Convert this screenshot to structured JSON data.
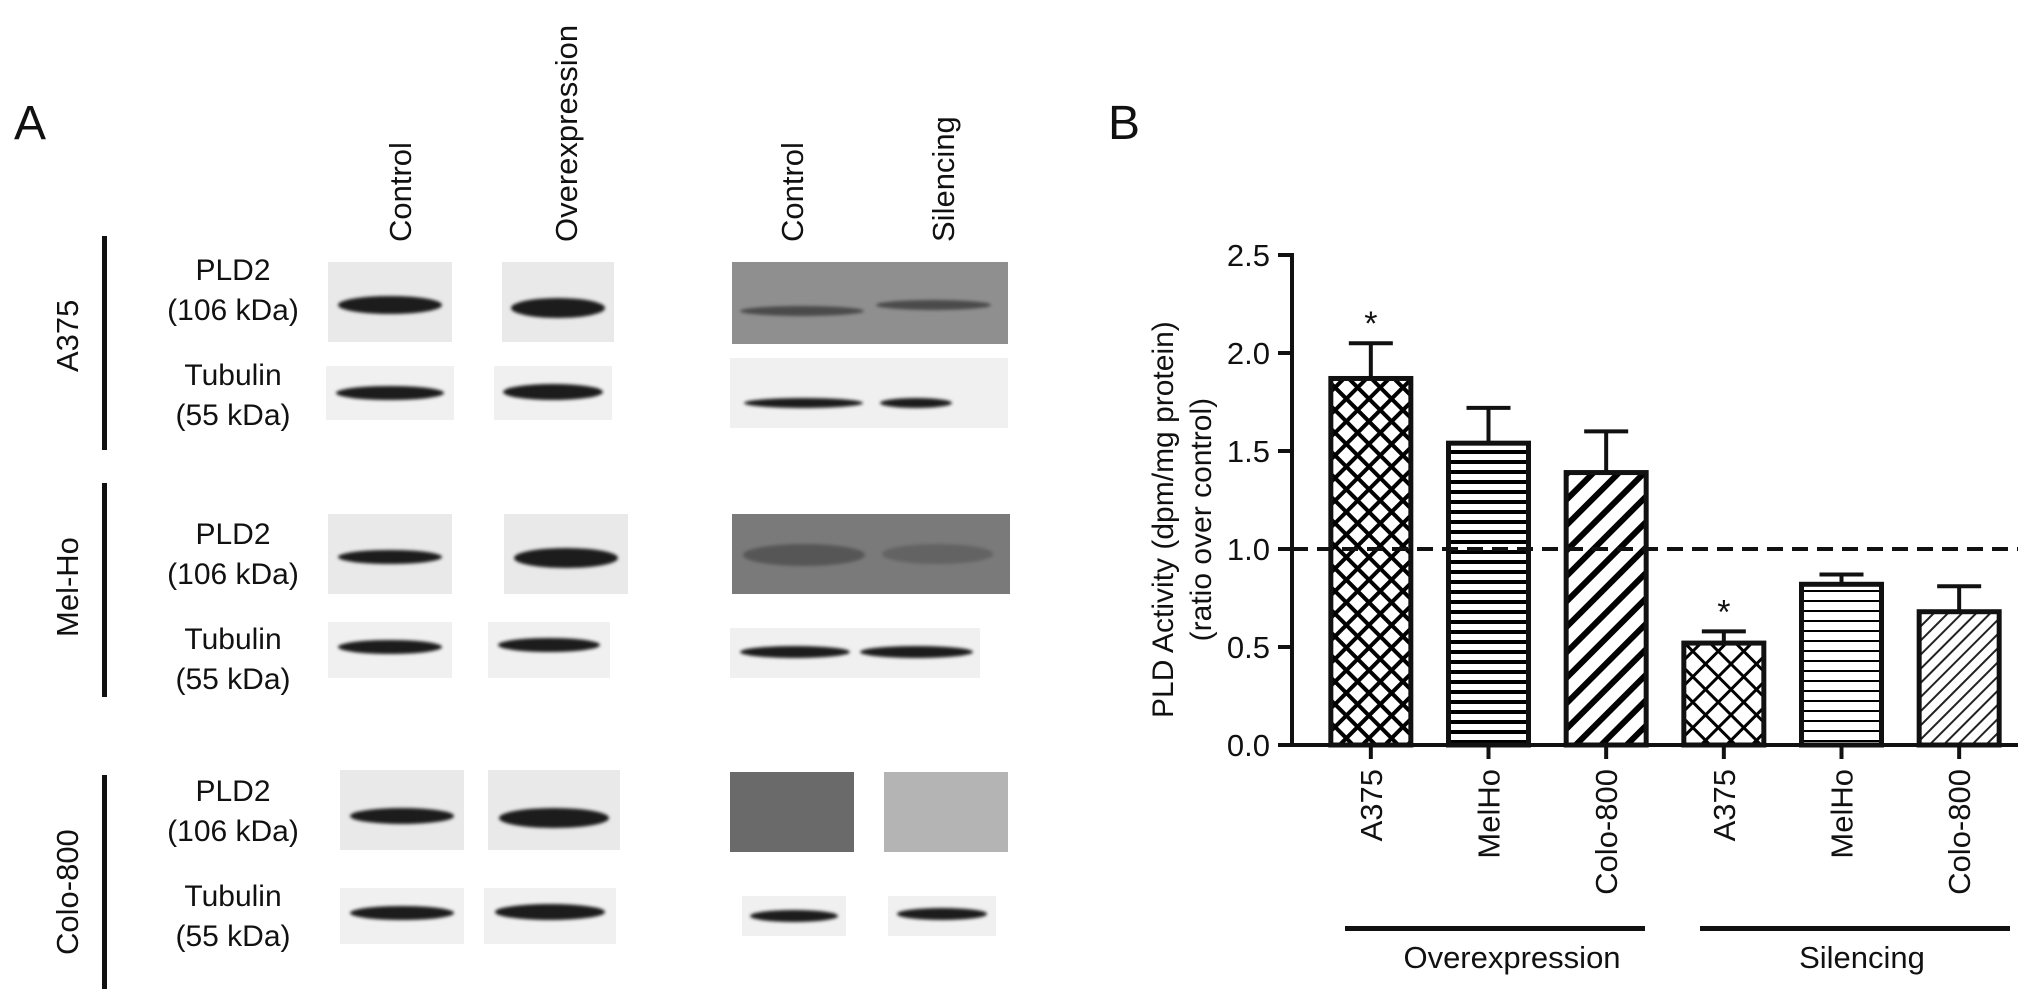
{
  "panelA": {
    "letter": "A",
    "columns": [
      "Control",
      "Overexpression",
      "Control",
      "Silencing"
    ],
    "groups": [
      {
        "cell_line": "A375",
        "protein1": "PLD2",
        "size1": "(106 kDa)",
        "protein2": "Tubulin",
        "size2": "(55 kDa)"
      },
      {
        "cell_line": "Mel-Ho",
        "protein1": "PLD2",
        "size1": "(106 kDa)",
        "protein2": "Tubulin",
        "size2": "(55 kDa)"
      },
      {
        "cell_line": "Colo-800",
        "protein1": "PLD2",
        "size1": "(106 kDa)",
        "protein2": "Tubulin",
        "size2": "(55 kDa)"
      }
    ]
  },
  "panelB": {
    "letter": "B",
    "group_labels": [
      "Overexpression",
      "Silencing"
    ]
  },
  "chart_data": {
    "type": "bar",
    "ylabel": "PLD Activity (dpm/mg protein)",
    "ylabel2": "(ratio over control)",
    "ylim": [
      0,
      2.5
    ],
    "yticks": [
      "0.0",
      "0.5",
      "1.0",
      "1.5",
      "2.0",
      "2.5"
    ],
    "categories": [
      "A375",
      "MelHo",
      "Colo-800",
      "A375",
      "MelHo",
      "Colo-800"
    ],
    "values": [
      1.87,
      1.54,
      1.39,
      0.52,
      0.82,
      0.68
    ],
    "errors": [
      0.18,
      0.18,
      0.21,
      0.06,
      0.05,
      0.13
    ],
    "patterns": [
      "crosshatch-dense",
      "horizontal-dense",
      "diagonal-dense",
      "crosshatch-sparse",
      "horizontal-sparse",
      "diagonal-sparse"
    ],
    "significance": [
      "*",
      "",
      "",
      "*",
      "",
      ""
    ],
    "reference_line": 1.0
  }
}
